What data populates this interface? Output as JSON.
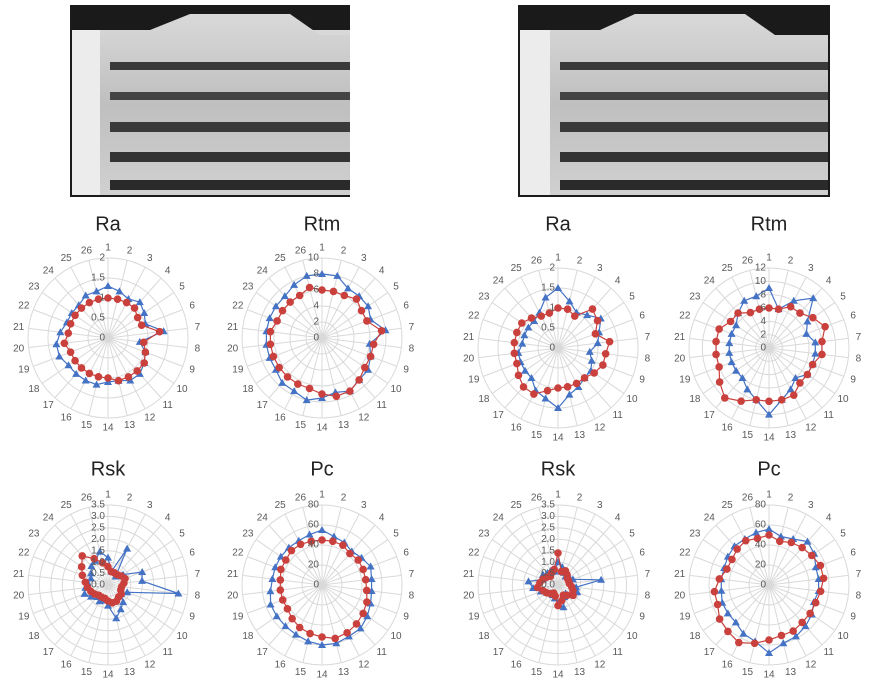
{
  "chart_data": [
    {
      "type": "radar",
      "title": "Ra",
      "categories": [
        "1",
        "2",
        "3",
        "4",
        "5",
        "6",
        "7",
        "8",
        "9",
        "10",
        "11",
        "12",
        "13",
        "14",
        "15",
        "16",
        "17",
        "18",
        "19",
        "20",
        "21",
        "22",
        "23",
        "24",
        "25",
        "26"
      ],
      "ylim": [
        0,
        2
      ],
      "yticks": [
        0,
        0.5,
        1,
        1.5,
        2
      ],
      "series": [
        {
          "color": "#4472c4",
          "marker": "triangle",
          "values": [
            1.3,
            1.2,
            1.1,
            1.2,
            1.1,
            1.0,
            1.4,
            0.8,
            1.0,
            1.1,
            1.2,
            1.2,
            1.1,
            1.1,
            1.2,
            1.2,
            1.2,
            1.2,
            1.3,
            1.3,
            1.2,
            1.1,
            1.1,
            1.1,
            1.2,
            1.2
          ]
        },
        {
          "color": "#c9403c",
          "marker": "circle",
          "values": [
            1.0,
            1.0,
            1.0,
            1.0,
            0.9,
            0.9,
            1.3,
            0.9,
            1.0,
            1.1,
            1.1,
            1.1,
            1.1,
            1.0,
            1.0,
            1.0,
            1.0,
            1.0,
            1.0,
            1.1,
            1.0,
            1.0,
            1.0,
            1.0,
            1.0,
            1.0
          ]
        }
      ]
    },
    {
      "type": "radar",
      "title": "Rtm",
      "categories": [
        "1",
        "2",
        "3",
        "4",
        "5",
        "6",
        "7",
        "8",
        "9",
        "10",
        "11",
        "12",
        "13",
        "14",
        "15",
        "16",
        "17",
        "18",
        "19",
        "20",
        "21",
        "22",
        "23",
        "24",
        "25",
        "26"
      ],
      "ylim": [
        0,
        10
      ],
      "yticks": [
        0,
        2,
        4,
        6,
        8,
        10
      ],
      "series": [
        {
          "color": "#4472c4",
          "marker": "triangle",
          "values": [
            8,
            8,
            7,
            7,
            7,
            6.5,
            8,
            6,
            6.5,
            7,
            7,
            7.5,
            7,
            7.5,
            8,
            7.5,
            7.5,
            7,
            7,
            7,
            7,
            7,
            7,
            7,
            7.5,
            8
          ]
        },
        {
          "color": "#c9403c",
          "marker": "circle",
          "values": [
            6,
            6,
            6,
            6.5,
            6,
            6,
            7.5,
            6.5,
            6.5,
            6.5,
            7,
            7.5,
            7.5,
            7,
            6.5,
            6.5,
            6.5,
            6.5,
            6.5,
            6.5,
            6.5,
            6,
            6,
            6,
            6,
            6.5
          ]
        }
      ]
    },
    {
      "type": "radar",
      "title": "Ra",
      "categories": [
        "1",
        "2",
        "3",
        "4",
        "5",
        "6",
        "7",
        "8",
        "9",
        "10",
        "11",
        "12",
        "13",
        "14",
        "15",
        "16",
        "17",
        "18",
        "19",
        "20",
        "21",
        "22",
        "23",
        "24",
        "25",
        "26"
      ],
      "ylim": [
        0,
        2
      ],
      "yticks": [
        0,
        0.5,
        1,
        1.5,
        2
      ],
      "series": [
        {
          "color": "#4472c4",
          "marker": "triangle",
          "values": [
            1.5,
            1.2,
            1.0,
            1.1,
            1.3,
            1.1,
            1.0,
            0.8,
            0.9,
            1.0,
            1.0,
            1.1,
            1.2,
            1.5,
            1.3,
            1.2,
            1.0,
            1.0,
            1.0,
            1.0,
            0.9,
            0.9,
            0.9,
            0.9,
            1.0,
            1.3
          ]
        },
        {
          "color": "#c9403c",
          "marker": "circle",
          "values": [
            1.0,
            1.0,
            0.9,
            1.3,
            1.2,
            1.0,
            1.3,
            1.2,
            1.2,
            1.1,
            1.0,
            1.0,
            1.0,
            1.0,
            1.1,
            1.3,
            1.3,
            1.2,
            1.1,
            1.1,
            1.1,
            1.1,
            1.1,
            1.0,
            0.9,
            0.9
          ]
        }
      ]
    },
    {
      "type": "radar",
      "title": "Rtm",
      "categories": [
        "1",
        "2",
        "3",
        "4",
        "5",
        "6",
        "7",
        "8",
        "9",
        "10",
        "11",
        "12",
        "13",
        "14",
        "15",
        "16",
        "17",
        "18",
        "19",
        "20",
        "21",
        "22",
        "23",
        "24",
        "25",
        "26"
      ],
      "ylim": [
        0,
        12
      ],
      "yticks": [
        0,
        2,
        4,
        6,
        8,
        10,
        12
      ],
      "series": [
        {
          "color": "#4472c4",
          "marker": "triangle",
          "values": [
            9,
            6,
            8,
            10,
            7,
            6,
            7,
            7,
            7,
            7,
            6,
            7,
            8,
            10,
            8,
            7,
            6,
            6,
            6,
            6,
            6,
            6,
            6,
            7,
            8,
            8
          ]
        },
        {
          "color": "#c9403c",
          "marker": "circle",
          "values": [
            6,
            6,
            7,
            7,
            8,
            9,
            8,
            8,
            7,
            7,
            7,
            8,
            8,
            8,
            8,
            9,
            10,
            9,
            8,
            8,
            8,
            8,
            7,
            7,
            6,
            6
          ]
        }
      ]
    },
    {
      "type": "radar",
      "title": "Rsk",
      "categories": [
        "1",
        "2",
        "3",
        "4",
        "5",
        "6",
        "7",
        "8",
        "9",
        "10",
        "11",
        "12",
        "13",
        "14",
        "15",
        "16",
        "17",
        "18",
        "19",
        "20",
        "21",
        "22",
        "23",
        "24",
        "25",
        "26"
      ],
      "ylim": [
        0,
        3.5
      ],
      "yticks": [
        {
          "value": 0,
          "label": "0.0"
        },
        0.5,
        {
          "value": 1,
          "label": "1.0"
        },
        1.5,
        {
          "value": 2,
          "label": "2.0"
        },
        2.5,
        {
          "value": 3,
          "label": "3.0"
        },
        3.5
      ],
      "series": [
        {
          "color": "#4472c4",
          "marker": "triangle",
          "values": [
            1.2,
            0.6,
            1.8,
            0.5,
            0.8,
            1.6,
            1.5,
            3.1,
            0.9,
            0.7,
            1.0,
            1.2,
            1.5,
            0.9,
            0.7,
            0.8,
            0.7,
            0.9,
            1.1,
            1.0,
            0.9,
            0.8,
            0.9,
            1.1,
            1.2,
            1.5
          ]
        },
        {
          "color": "#c9403c",
          "marker": "circle",
          "values": [
            0.8,
            0.6,
            0.6,
            0.6,
            0.7,
            0.8,
            0.7,
            0.6,
            0.6,
            0.7,
            0.7,
            0.8,
            0.8,
            0.7,
            0.6,
            0.6,
            0.6,
            0.7,
            0.8,
            0.9,
            1.0,
            1.2,
            1.4,
            1.7,
            1.3,
            1.0
          ]
        }
      ]
    },
    {
      "type": "radar",
      "title": "Pc",
      "categories": [
        "1",
        "2",
        "3",
        "4",
        "5",
        "6",
        "7",
        "8",
        "9",
        "10",
        "11",
        "12",
        "13",
        "14",
        "15",
        "16",
        "17",
        "18",
        "19",
        "20",
        "21",
        "22",
        "23",
        "24",
        "25",
        "26"
      ],
      "ylim": [
        0,
        80
      ],
      "yticks": [
        0,
        20,
        40,
        60,
        80
      ],
      "series": [
        {
          "color": "#4472c4",
          "marker": "triangle",
          "values": [
            55,
            50,
            48,
            45,
            48,
            52,
            50,
            50,
            52,
            55,
            58,
            58,
            60,
            60,
            58,
            56,
            55,
            55,
            55,
            52,
            50,
            50,
            50,
            50,
            50,
            52
          ]
        },
        {
          "color": "#c9403c",
          "marker": "circle",
          "values": [
            45,
            45,
            45,
            42,
            44,
            44,
            44,
            45,
            48,
            50,
            52,
            54,
            55,
            52,
            50,
            48,
            45,
            42,
            42,
            42,
            42,
            44,
            44,
            46,
            46,
            45
          ]
        }
      ]
    },
    {
      "type": "radar",
      "title": "Rsk",
      "categories": [
        "1",
        "2",
        "3",
        "4",
        "5",
        "6",
        "7",
        "8",
        "9",
        "10",
        "11",
        "12",
        "13",
        "14",
        "15",
        "16",
        "17",
        "18",
        "19",
        "20",
        "21",
        "22",
        "23",
        "24",
        "25",
        "26"
      ],
      "ylim": [
        0,
        3.5
      ],
      "yticks": [
        {
          "value": 0,
          "label": "0.0"
        },
        0.5,
        {
          "value": 1,
          "label": "1.0"
        },
        1.5,
        {
          "value": 2,
          "label": "2.0"
        },
        2.5,
        {
          "value": 3,
          "label": "3.0"
        },
        3.5
      ],
      "series": [
        {
          "color": "#4472c4",
          "marker": "triangle",
          "values": [
            1.0,
            0.8,
            0.6,
            0.5,
            0.6,
            0.7,
            1.9,
            0.8,
            0.9,
            0.7,
            0.5,
            0.6,
            1.0,
            0.8,
            0.6,
            0.5,
            0.5,
            0.6,
            0.8,
            1.1,
            1.3,
            0.7,
            0.8,
            0.7,
            0.7,
            0.6
          ]
        },
        {
          "color": "#c9403c",
          "marker": "circle",
          "values": [
            1.4,
            0.6,
            0.7,
            0.6,
            0.5,
            0.5,
            0.5,
            0.6,
            0.7,
            0.8,
            0.6,
            0.5,
            0.7,
            0.9,
            0.5,
            0.4,
            0.5,
            0.6,
            0.7,
            0.9,
            0.8,
            0.7,
            0.6,
            0.5,
            0.6,
            0.7
          ]
        }
      ]
    },
    {
      "type": "radar",
      "title": "Pc",
      "categories": [
        "1",
        "2",
        "3",
        "4",
        "5",
        "6",
        "7",
        "8",
        "9",
        "10",
        "11",
        "12",
        "13",
        "14",
        "15",
        "16",
        "17",
        "18",
        "19",
        "20",
        "21",
        "22",
        "23",
        "24",
        "25",
        "26"
      ],
      "ylim": [
        0,
        80
      ],
      "yticks": [
        0,
        20,
        40,
        60,
        80
      ],
      "series": [
        {
          "color": "#4472c4",
          "marker": "triangle",
          "values": [
            56,
            50,
            52,
            58,
            55,
            50,
            50,
            50,
            48,
            52,
            55,
            58,
            60,
            68,
            58,
            55,
            50,
            50,
            50,
            48,
            48,
            48,
            50,
            52,
            52,
            54
          ]
        },
        {
          "color": "#c9403c",
          "marker": "circle",
          "values": [
            50,
            45,
            48,
            50,
            52,
            55,
            55,
            52,
            50,
            50,
            50,
            52,
            52,
            55,
            60,
            65,
            62,
            60,
            55,
            55,
            50,
            45,
            45,
            48,
            50,
            48
          ]
        }
      ]
    }
  ]
}
